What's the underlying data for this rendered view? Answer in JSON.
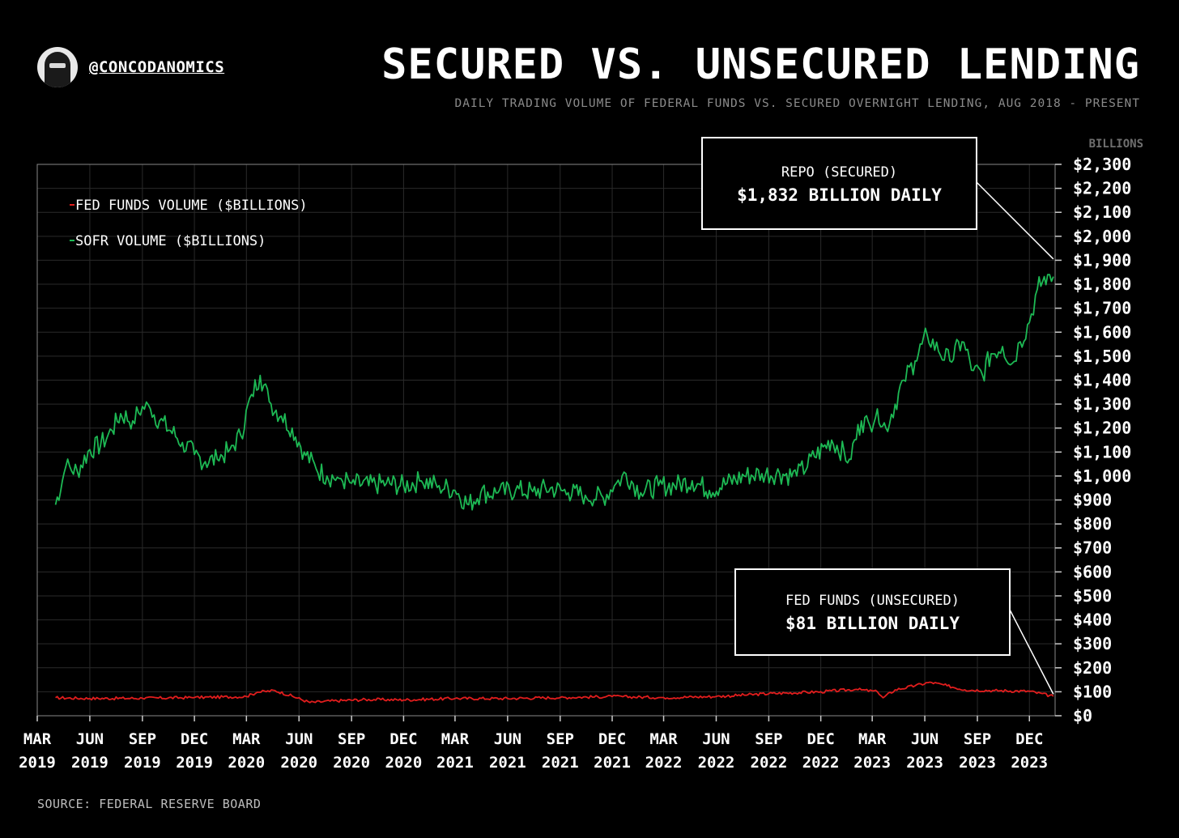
{
  "header": {
    "handle": "@CONCODANOMICS",
    "title": "SECURED VS. UNSECURED LENDING",
    "subtitle": "DAILY TRADING VOLUME OF FEDERAL FUNDS VS. SECURED OVERNIGHT LENDING, AUG 2018 - PRESENT"
  },
  "footer": {
    "source": "SOURCE: FEDERAL RESERVE BOARD"
  },
  "chart_data": {
    "type": "line",
    "ylabel": "BILLIONS",
    "ylim": [
      0,
      2300
    ],
    "yticks": [
      0,
      100,
      200,
      300,
      400,
      500,
      600,
      700,
      800,
      900,
      1000,
      1100,
      1200,
      1300,
      1400,
      1500,
      1600,
      1700,
      1800,
      1900,
      2000,
      2100,
      2200,
      2300
    ],
    "ytick_labels": [
      "$0",
      "$100",
      "$200",
      "$300",
      "$400",
      "$500",
      "$600",
      "$700",
      "$800",
      "$900",
      "$1,000",
      "$1,100",
      "$1,200",
      "$1,300",
      "$1,400",
      "$1,500",
      "$1,600",
      "$1,700",
      "$1,800",
      "$1,900",
      "$2,000",
      "$2,100",
      "$2,200",
      "$2,300"
    ],
    "xlim": [
      "2019-03-01",
      "2024-01-15"
    ],
    "xticks": [
      {
        "date": "2019-03-01",
        "line1": "MAR",
        "line2": "2019"
      },
      {
        "date": "2019-06-01",
        "line1": "JUN",
        "line2": "2019"
      },
      {
        "date": "2019-09-01",
        "line1": "SEP",
        "line2": "2019"
      },
      {
        "date": "2019-12-01",
        "line1": "DEC",
        "line2": "2019"
      },
      {
        "date": "2020-03-01",
        "line1": "MAR",
        "line2": "2020"
      },
      {
        "date": "2020-06-01",
        "line1": "JUN",
        "line2": "2020"
      },
      {
        "date": "2020-09-01",
        "line1": "SEP",
        "line2": "2020"
      },
      {
        "date": "2020-12-01",
        "line1": "DEC",
        "line2": "2020"
      },
      {
        "date": "2021-03-01",
        "line1": "MAR",
        "line2": "2021"
      },
      {
        "date": "2021-06-01",
        "line1": "JUN",
        "line2": "2021"
      },
      {
        "date": "2021-09-01",
        "line1": "SEP",
        "line2": "2021"
      },
      {
        "date": "2021-12-01",
        "line1": "DEC",
        "line2": "2021"
      },
      {
        "date": "2022-03-01",
        "line1": "MAR",
        "line2": "2022"
      },
      {
        "date": "2022-06-01",
        "line1": "JUN",
        "line2": "2022"
      },
      {
        "date": "2022-09-01",
        "line1": "SEP",
        "line2": "2022"
      },
      {
        "date": "2022-12-01",
        "line1": "DEC",
        "line2": "2022"
      },
      {
        "date": "2023-03-01",
        "line1": "MAR",
        "line2": "2023"
      },
      {
        "date": "2023-06-01",
        "line1": "JUN",
        "line2": "2023"
      },
      {
        "date": "2023-09-01",
        "line1": "SEP",
        "line2": "2023"
      },
      {
        "date": "2023-12-01",
        "line1": "DEC",
        "line2": "2023"
      }
    ],
    "grid": true,
    "legend_position": "top-left",
    "series": [
      {
        "name": "SOFR VOLUME ($BILLIONS)",
        "color": "#1db954",
        "points": [
          [
            "2019-04-02",
            880
          ],
          [
            "2019-04-20",
            1040
          ],
          [
            "2019-05-10",
            1020
          ],
          [
            "2019-06-01",
            1110
          ],
          [
            "2019-06-20",
            1130
          ],
          [
            "2019-07-10",
            1190
          ],
          [
            "2019-07-25",
            1260
          ],
          [
            "2019-08-15",
            1230
          ],
          [
            "2019-09-01",
            1290
          ],
          [
            "2019-09-15",
            1280
          ],
          [
            "2019-10-01",
            1230
          ],
          [
            "2019-10-20",
            1190
          ],
          [
            "2019-11-10",
            1140
          ],
          [
            "2019-12-01",
            1090
          ],
          [
            "2019-12-20",
            1060
          ],
          [
            "2020-01-10",
            1070
          ],
          [
            "2020-02-01",
            1110
          ],
          [
            "2020-02-20",
            1170
          ],
          [
            "2020-03-10",
            1340
          ],
          [
            "2020-03-25",
            1420
          ],
          [
            "2020-04-10",
            1310
          ],
          [
            "2020-05-01",
            1250
          ],
          [
            "2020-05-20",
            1200
          ],
          [
            "2020-06-10",
            1100
          ],
          [
            "2020-07-01",
            1030
          ],
          [
            "2020-07-20",
            1000
          ],
          [
            "2020-08-10",
            990
          ],
          [
            "2020-09-01",
            970
          ],
          [
            "2020-10-01",
            960
          ],
          [
            "2020-11-01",
            970
          ],
          [
            "2020-12-01",
            960
          ],
          [
            "2021-01-01",
            980
          ],
          [
            "2021-02-01",
            960
          ],
          [
            "2021-03-01",
            940
          ],
          [
            "2021-03-25",
            880
          ],
          [
            "2021-04-15",
            930
          ],
          [
            "2021-05-15",
            930
          ],
          [
            "2021-06-15",
            940
          ],
          [
            "2021-07-15",
            935
          ],
          [
            "2021-08-15",
            950
          ],
          [
            "2021-09-15",
            930
          ],
          [
            "2021-10-15",
            920
          ],
          [
            "2021-11-15",
            910
          ],
          [
            "2021-12-05",
            960
          ],
          [
            "2021-12-25",
            1010
          ],
          [
            "2022-01-20",
            930
          ],
          [
            "2022-02-20",
            960
          ],
          [
            "2022-03-20",
            960
          ],
          [
            "2022-04-20",
            980
          ],
          [
            "2022-05-20",
            940
          ],
          [
            "2022-06-20",
            970
          ],
          [
            "2022-07-20",
            1000
          ],
          [
            "2022-08-20",
            1010
          ],
          [
            "2022-09-20",
            1010
          ],
          [
            "2022-10-20",
            1000
          ],
          [
            "2022-11-20",
            1080
          ],
          [
            "2022-12-20",
            1150
          ],
          [
            "2023-01-20",
            1070
          ],
          [
            "2023-02-10",
            1230
          ],
          [
            "2023-02-25",
            1210
          ],
          [
            "2023-03-10",
            1280
          ],
          [
            "2023-03-25",
            1200
          ],
          [
            "2023-04-10",
            1300
          ],
          [
            "2023-04-25",
            1400
          ],
          [
            "2023-05-15",
            1480
          ],
          [
            "2023-06-05",
            1590
          ],
          [
            "2023-06-25",
            1520
          ],
          [
            "2023-07-15",
            1480
          ],
          [
            "2023-08-05",
            1560
          ],
          [
            "2023-08-25",
            1440
          ],
          [
            "2023-09-10",
            1420
          ],
          [
            "2023-09-25",
            1510
          ],
          [
            "2023-10-15",
            1540
          ],
          [
            "2023-11-01",
            1470
          ],
          [
            "2023-11-15",
            1560
          ],
          [
            "2023-12-01",
            1640
          ],
          [
            "2023-12-15",
            1780
          ],
          [
            "2024-01-02",
            1840
          ],
          [
            "2024-01-12",
            1832
          ]
        ]
      },
      {
        "name": "FED FUNDS VOLUME ($BILLIONS)",
        "color": "#e11d1d",
        "points": [
          [
            "2019-04-02",
            75
          ],
          [
            "2019-06-01",
            72
          ],
          [
            "2019-09-01",
            73
          ],
          [
            "2019-12-01",
            76
          ],
          [
            "2020-03-01",
            80
          ],
          [
            "2020-03-20",
            98
          ],
          [
            "2020-04-20",
            105
          ],
          [
            "2020-05-20",
            82
          ],
          [
            "2020-06-20",
            55
          ],
          [
            "2020-08-01",
            62
          ],
          [
            "2020-10-01",
            68
          ],
          [
            "2020-12-01",
            66
          ],
          [
            "2021-03-01",
            72
          ],
          [
            "2021-06-01",
            72
          ],
          [
            "2021-09-01",
            76
          ],
          [
            "2021-12-01",
            80
          ],
          [
            "2022-03-01",
            76
          ],
          [
            "2022-06-01",
            80
          ],
          [
            "2022-09-01",
            92
          ],
          [
            "2022-12-01",
            100
          ],
          [
            "2023-02-01",
            110
          ],
          [
            "2023-03-10",
            100
          ],
          [
            "2023-03-20",
            75
          ],
          [
            "2023-04-10",
            108
          ],
          [
            "2023-05-15",
            125
          ],
          [
            "2023-06-10",
            140
          ],
          [
            "2023-07-10",
            125
          ],
          [
            "2023-08-10",
            108
          ],
          [
            "2023-10-01",
            105
          ],
          [
            "2023-12-01",
            102
          ],
          [
            "2024-01-12",
            81
          ]
        ]
      }
    ],
    "annotations": [
      {
        "line1": "REPO (SECURED)",
        "line2": "$1,832 BILLION DAILY",
        "target": {
          "date": "2024-01-12",
          "value": 1905
        }
      },
      {
        "line1": "FED FUNDS (UNSECURED)",
        "line2": "$81 BILLION DAILY",
        "target": {
          "date": "2024-01-12",
          "value": 90
        }
      }
    ]
  }
}
